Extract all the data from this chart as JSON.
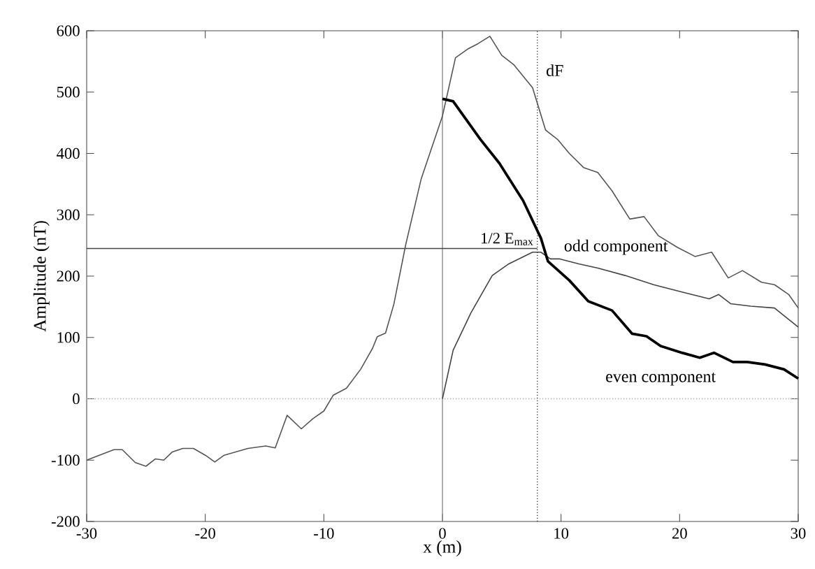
{
  "chart_data": {
    "type": "line",
    "xlabel": "x (m)",
    "ylabel": "Amplitude (nT)",
    "xlim": [
      -30,
      30
    ],
    "ylim": [
      -200,
      600
    ],
    "xticks": [
      -30,
      -20,
      -10,
      0,
      10,
      20,
      30
    ],
    "yticks": [
      -200,
      -100,
      0,
      100,
      200,
      300,
      400,
      500,
      600
    ],
    "grid": false,
    "legend": false,
    "series": [
      {
        "name": "dF",
        "color": "#555555",
        "x": [
          -30,
          -27.7,
          -27,
          -25.9,
          -25,
          -24.2,
          -23.5,
          -22.8,
          -21.9,
          -21,
          -20,
          -19.2,
          -18.4,
          -16.4,
          -14.9,
          -14.1,
          -13.1,
          -11.9,
          -10.9,
          -10,
          -9.2,
          -8.1,
          -6.9,
          -5.9,
          -5.5,
          -4.8,
          -4.1,
          -3.1,
          -1.8,
          0,
          1.1,
          2.2,
          3,
          4,
          5,
          6,
          7.6,
          8.7,
          9.7,
          10.7,
          11.9,
          13.1,
          14.3,
          15.8,
          17,
          18.2,
          19.8,
          21.3,
          22.7,
          24.1,
          25.3,
          26.9,
          28,
          29.2,
          30
        ],
        "values": [
          -100,
          -83,
          -83,
          -104,
          -110,
          -98,
          -100,
          -87,
          -81,
          -81,
          -92,
          -103,
          -92,
          -81,
          -77,
          -80,
          -27,
          -49,
          -32,
          -20,
          6,
          17,
          48,
          82,
          101,
          107,
          154,
          251,
          358,
          461,
          556,
          571,
          579,
          591,
          560,
          545,
          507,
          438,
          423,
          400,
          377,
          369,
          339,
          293,
          297,
          266,
          247,
          232,
          239,
          197,
          209,
          190,
          186,
          170,
          148
        ]
      },
      {
        "name": "odd component",
        "color": "#444444",
        "x": [
          0,
          0.9,
          2.4,
          4.2,
          5.6,
          7.6,
          8.3,
          9.1,
          9.9,
          11.5,
          13.1,
          15.4,
          17.8,
          20.2,
          22.5,
          23.3,
          24.3,
          26,
          28,
          30
        ],
        "values": [
          0,
          79,
          140,
          201,
          220,
          239,
          239,
          228,
          228,
          220,
          213,
          201,
          186,
          174,
          163,
          170,
          155,
          151,
          148,
          117
        ]
      },
      {
        "name": "even component",
        "color": "#000000",
        "x": [
          0,
          0.9,
          3.2,
          4.8,
          6.8,
          8.3,
          8.9,
          10.7,
          12.3,
          14.3,
          16,
          17.2,
          18.4,
          20.2,
          21.7,
          22.9,
          24.5,
          25.7,
          27.2,
          28.8,
          30
        ],
        "values": [
          489,
          485,
          423,
          384,
          323,
          262,
          224,
          193,
          159,
          144,
          106,
          102,
          86,
          75,
          67,
          75,
          60,
          60,
          56,
          48,
          33
        ]
      }
    ],
    "ref_lines": [
      {
        "axis": "x",
        "value": 0,
        "color": "#888888",
        "line_style": "solid"
      },
      {
        "axis": "x",
        "value": 8,
        "color": "#333333",
        "line_style": "dotted"
      },
      {
        "axis": "y",
        "value": 245,
        "label": "1/2 E$_{max}$",
        "color": "#444444",
        "line_style": "solid"
      },
      {
        "axis": "y",
        "value": 0,
        "color": "#aaaaaa",
        "line_style": "dotted"
      }
    ]
  }
}
